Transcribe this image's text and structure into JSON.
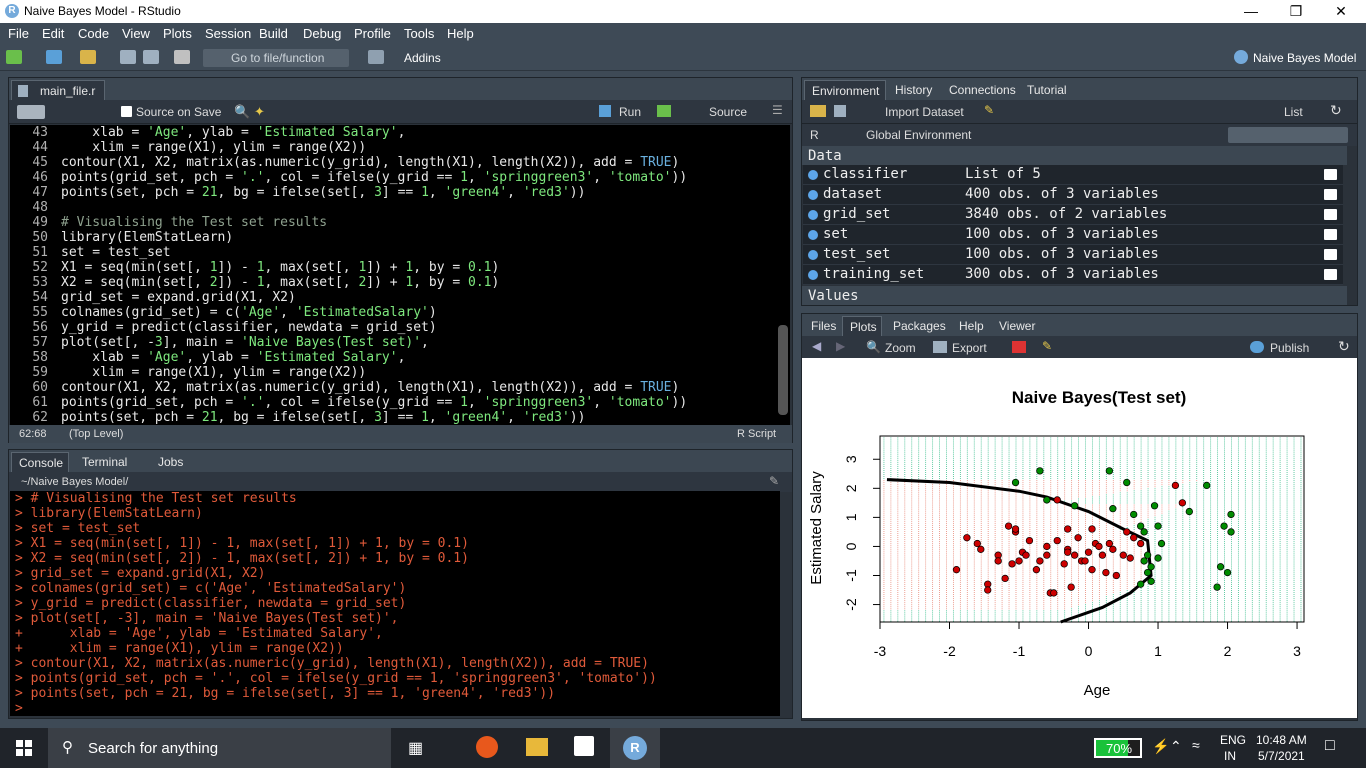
{
  "window": {
    "title": "Naive Bayes Model - RStudio"
  },
  "menu": [
    "File",
    "Edit",
    "Code",
    "View",
    "Plots",
    "Session",
    "Build",
    "Debug",
    "Profile",
    "Tools",
    "Help"
  ],
  "toolbar": {
    "goto_placeholder": "Go to file/function",
    "addins": "Addins",
    "project": "Naive Bayes Model"
  },
  "editor": {
    "tab": "main_file.r",
    "source_on_save": "Source on Save",
    "run": "Run",
    "source": "Source",
    "position": "62:68",
    "scope": "(Top Level)",
    "filetype": "R Script",
    "lines": [
      {
        "n": "43",
        "html": "    xlab = <span class='s'>'Age'</span>, ylab = <span class='s'>'Estimated Salary'</span>,"
      },
      {
        "n": "44",
        "html": "    xlim = range(X1), ylim = range(X2))"
      },
      {
        "n": "45",
        "html": "contour(X1, X2, matrix(as.numeric(y_grid), length(X1), length(X2)), add = <span class='k'>TRUE</span>)"
      },
      {
        "n": "46",
        "html": "points(grid_set, pch = <span class='s'>'.'</span>, col = ifelse(y_grid == <span class='s'>1</span>, <span class='s'>'springgreen3'</span>, <span class='s'>'tomato'</span>))"
      },
      {
        "n": "47",
        "html": "points(set, pch = <span class='s'>21</span>, bg = ifelse(set[, <span class='s'>3</span>] == <span class='s'>1</span>, <span class='s'>'green4'</span>, <span class='s'>'red3'</span>))"
      },
      {
        "n": "48",
        "html": ""
      },
      {
        "n": "49",
        "html": "<span class='c'># Visualising the Test set results</span>"
      },
      {
        "n": "50",
        "html": "library(ElemStatLearn)"
      },
      {
        "n": "51",
        "html": "set = test_set"
      },
      {
        "n": "52",
        "html": "X1 = seq(min(set[, <span class='s'>1</span>]) - <span class='s'>1</span>, max(set[, <span class='s'>1</span>]) + <span class='s'>1</span>, by = <span class='s'>0.1</span>)"
      },
      {
        "n": "53",
        "html": "X2 = seq(min(set[, <span class='s'>2</span>]) - <span class='s'>1</span>, max(set[, <span class='s'>2</span>]) + <span class='s'>1</span>, by = <span class='s'>0.1</span>)"
      },
      {
        "n": "54",
        "html": "grid_set = expand.grid(X1, X2)"
      },
      {
        "n": "55",
        "html": "colnames(grid_set) = c(<span class='s'>'Age'</span>, <span class='s'>'EstimatedSalary'</span>)"
      },
      {
        "n": "56",
        "html": "y_grid = predict(classifier, newdata = grid_set)"
      },
      {
        "n": "57",
        "html": "plot(set[, -<span class='s'>3</span>], main = <span class='s'>'Naive Bayes(Test set)'</span>,"
      },
      {
        "n": "58",
        "html": "    xlab = <span class='s'>'Age'</span>, ylab = <span class='s'>'Estimated Salary'</span>,"
      },
      {
        "n": "59",
        "html": "    xlim = range(X1), ylim = range(X2))"
      },
      {
        "n": "60",
        "html": "contour(X1, X2, matrix(as.numeric(y_grid), length(X1), length(X2)), add = <span class='k'>TRUE</span>)"
      },
      {
        "n": "61",
        "html": "points(grid_set, pch = <span class='s'>'.'</span>, col = ifelse(y_grid == <span class='s'>1</span>, <span class='s'>'springgreen3'</span>, <span class='s'>'tomato'</span>))"
      },
      {
        "n": "62",
        "html": "points(set, pch = <span class='s'>21</span>, bg = ifelse(set[, <span class='s'>3</span>] == <span class='s'>1</span>, <span class='s'>'green4'</span>, <span class='s'>'red3'</span>))"
      }
    ]
  },
  "console": {
    "tabs": [
      "Console",
      "Terminal",
      "Jobs"
    ],
    "path": "~/Naive Bayes Model/",
    "lines": [
      "> # Visualising the Test set results",
      "> library(ElemStatLearn)",
      "> set = test_set",
      "> X1 = seq(min(set[, 1]) - 1, max(set[, 1]) + 1, by = 0.1)",
      "> X2 = seq(min(set[, 2]) - 1, max(set[, 2]) + 1, by = 0.1)",
      "> grid_set = expand.grid(X1, X2)",
      "> colnames(grid_set) = c('Age', 'EstimatedSalary')",
      "> y_grid = predict(classifier, newdata = grid_set)",
      "> plot(set[, -3], main = 'Naive Bayes(Test set)',",
      "+      xlab = 'Age', ylab = 'Estimated Salary',",
      "+      xlim = range(X1), ylim = range(X2))",
      "> contour(X1, X2, matrix(as.numeric(y_grid), length(X1), length(X2)), add = TRUE)",
      "> points(grid_set, pch = '.', col = ifelse(y_grid == 1, 'springgreen3', 'tomato'))",
      "> points(set, pch = 21, bg = ifelse(set[, 3] == 1, 'green4', 'red3'))",
      ">"
    ]
  },
  "env": {
    "tabs": [
      "Environment",
      "History",
      "Connections",
      "Tutorial"
    ],
    "import": "Import Dataset",
    "list": "List",
    "lang": "R",
    "global": "Global Environment",
    "data_header": "Data",
    "values_header": "Values",
    "rows": [
      {
        "name": "classifier",
        "value": "List of  5"
      },
      {
        "name": "dataset",
        "value": "400 obs. of 3 variables"
      },
      {
        "name": "grid_set",
        "value": "3840 obs. of 2 variables"
      },
      {
        "name": "set",
        "value": "100 obs. of 3 variables"
      },
      {
        "name": "test_set",
        "value": "100 obs. of 3 variables"
      },
      {
        "name": "training_set",
        "value": "300 obs. of 3 variables"
      }
    ]
  },
  "files": {
    "tabs": [
      "Files",
      "Plots",
      "Packages",
      "Help",
      "Viewer"
    ],
    "zoom": "Zoom",
    "export": "Export",
    "publish": "Publish"
  },
  "chart_data": {
    "type": "scatter",
    "title": "Naive Bayes(Test set)",
    "xlabel": "Age",
    "ylabel": "Estimated Salary",
    "xlim": [
      -3,
      3.1
    ],
    "ylim": [
      -2.6,
      3.8
    ],
    "xticks": [
      "-3",
      "-2",
      "-1",
      "0",
      "1",
      "2",
      "3"
    ],
    "yticks": [
      "-2",
      "-1",
      "0",
      "1",
      "2",
      "3"
    ],
    "series": [
      {
        "name": "0",
        "color": "#cd0000",
        "points": [
          [
            -1.9,
            -0.8
          ],
          [
            -1.75,
            0.3
          ],
          [
            -1.6,
            0.1
          ],
          [
            -1.55,
            -0.1
          ],
          [
            -1.45,
            -1.3
          ],
          [
            -1.45,
            -1.5
          ],
          [
            -1.3,
            -0.3
          ],
          [
            -1.3,
            -0.5
          ],
          [
            -1.2,
            -1.1
          ],
          [
            -1.15,
            0.7
          ],
          [
            -1.1,
            -0.6
          ],
          [
            -1.05,
            0.5
          ],
          [
            -1.05,
            0.6
          ],
          [
            -1,
            -0.5
          ],
          [
            -0.95,
            -0.2
          ],
          [
            -0.9,
            -0.3
          ],
          [
            -0.85,
            0.2
          ],
          [
            -0.75,
            -0.8
          ],
          [
            -0.7,
            -0.5
          ],
          [
            -0.6,
            -0.3
          ],
          [
            -0.6,
            0.0
          ],
          [
            -0.55,
            -1.6
          ],
          [
            -0.5,
            -1.6
          ],
          [
            -0.45,
            0.2
          ],
          [
            -0.35,
            -0.6
          ],
          [
            -0.3,
            -0.1
          ],
          [
            -0.3,
            -0.2
          ],
          [
            -0.25,
            -1.4
          ],
          [
            -0.2,
            -0.3
          ],
          [
            -0.15,
            0.3
          ],
          [
            -0.1,
            -0.5
          ],
          [
            -0.05,
            -0.5
          ],
          [
            0.0,
            -0.2
          ],
          [
            0.05,
            -0.8
          ],
          [
            0.1,
            0.1
          ],
          [
            0.15,
            0.0
          ],
          [
            0.2,
            -0.3
          ],
          [
            0.25,
            -0.9
          ],
          [
            0.3,
            0.1
          ],
          [
            0.35,
            -0.1
          ],
          [
            0.4,
            -1.0
          ],
          [
            0.5,
            -0.3
          ],
          [
            0.55,
            0.5
          ],
          [
            0.6,
            -0.4
          ],
          [
            0.65,
            0.3
          ],
          [
            0.75,
            0.1
          ],
          [
            -0.45,
            1.6
          ],
          [
            -0.3,
            0.6
          ],
          [
            0.05,
            0.6
          ],
          [
            1.25,
            2.1
          ],
          [
            1.35,
            1.5
          ]
        ]
      },
      {
        "name": "1",
        "color": "#008b00",
        "points": [
          [
            -1.05,
            2.2
          ],
          [
            -0.7,
            2.6
          ],
          [
            -0.6,
            1.6
          ],
          [
            -0.2,
            1.4
          ],
          [
            0.3,
            2.6
          ],
          [
            0.35,
            1.3
          ],
          [
            0.55,
            2.2
          ],
          [
            0.65,
            1.1
          ],
          [
            0.75,
            0.7
          ],
          [
            0.8,
            0.5
          ],
          [
            0.85,
            -0.3
          ],
          [
            0.85,
            -0.9
          ],
          [
            0.9,
            -1.2
          ],
          [
            0.95,
            1.4
          ],
          [
            1.0,
            0.7
          ],
          [
            1.0,
            -0.4
          ],
          [
            1.05,
            0.1
          ],
          [
            1.45,
            1.2
          ],
          [
            1.7,
            2.1
          ],
          [
            1.9,
            -0.7
          ],
          [
            1.95,
            0.7
          ],
          [
            2.0,
            -0.9
          ],
          [
            2.05,
            1.1
          ],
          [
            2.05,
            0.5
          ],
          [
            1.85,
            -1.4
          ],
          [
            0.8,
            -0.5
          ],
          [
            0.75,
            -1.3
          ],
          [
            0.9,
            -0.7
          ]
        ]
      }
    ]
  }
}
